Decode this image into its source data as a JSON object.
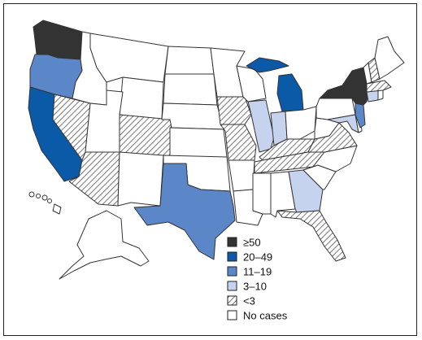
{
  "colors": {
    "ge50": "#333333",
    "c20_49": "#0a5aa8",
    "c11_19": "#5b87c9",
    "c3_10": "#c6d3ee",
    "lt3": "hatch",
    "none": "#ffffff",
    "border": "#333333"
  },
  "legend": {
    "items": [
      {
        "key": "ge50",
        "label": "≥50"
      },
      {
        "key": "c20_49",
        "label": "20–49"
      },
      {
        "key": "c11_19",
        "label": "11–19"
      },
      {
        "key": "c3_10",
        "label": "3–10"
      },
      {
        "key": "lt3",
        "label": "<3"
      },
      {
        "key": "none",
        "label": "No cases"
      }
    ]
  },
  "map_data": {
    "states": [
      {
        "name": "Washington",
        "category": "ge50"
      },
      {
        "name": "Oregon",
        "category": "c11_19"
      },
      {
        "name": "California",
        "category": "c20_49"
      },
      {
        "name": "Nevada",
        "category": "lt3"
      },
      {
        "name": "Idaho",
        "category": "none"
      },
      {
        "name": "Montana",
        "category": "none"
      },
      {
        "name": "Wyoming",
        "category": "none"
      },
      {
        "name": "Utah",
        "category": "none"
      },
      {
        "name": "Arizona",
        "category": "lt3"
      },
      {
        "name": "Colorado",
        "category": "lt3"
      },
      {
        "name": "New Mexico",
        "category": "none"
      },
      {
        "name": "North Dakota",
        "category": "none"
      },
      {
        "name": "South Dakota",
        "category": "none"
      },
      {
        "name": "Nebraska",
        "category": "none"
      },
      {
        "name": "Kansas",
        "category": "none"
      },
      {
        "name": "Oklahoma",
        "category": "none"
      },
      {
        "name": "Texas",
        "category": "c11_19"
      },
      {
        "name": "Minnesota",
        "category": "none"
      },
      {
        "name": "Iowa",
        "category": "lt3"
      },
      {
        "name": "Missouri",
        "category": "lt3"
      },
      {
        "name": "Arkansas",
        "category": "none"
      },
      {
        "name": "Louisiana",
        "category": "none"
      },
      {
        "name": "Wisconsin",
        "category": "none"
      },
      {
        "name": "Illinois",
        "category": "c3_10"
      },
      {
        "name": "Michigan",
        "category": "c20_49"
      },
      {
        "name": "Indiana",
        "category": "c3_10"
      },
      {
        "name": "Ohio",
        "category": "none"
      },
      {
        "name": "Kentucky",
        "category": "lt3"
      },
      {
        "name": "Tennessee",
        "category": "lt3"
      },
      {
        "name": "Mississippi",
        "category": "none"
      },
      {
        "name": "Alabama",
        "category": "none"
      },
      {
        "name": "Georgia",
        "category": "c3_10"
      },
      {
        "name": "Florida",
        "category": "lt3"
      },
      {
        "name": "South Carolina",
        "category": "none"
      },
      {
        "name": "North Carolina",
        "category": "none"
      },
      {
        "name": "Virginia",
        "category": "lt3"
      },
      {
        "name": "West Virginia",
        "category": "none"
      },
      {
        "name": "Maryland",
        "category": "c3_10"
      },
      {
        "name": "Delaware",
        "category": "none"
      },
      {
        "name": "Pennsylvania",
        "category": "none"
      },
      {
        "name": "New Jersey",
        "category": "c11_19"
      },
      {
        "name": "New York",
        "category": "ge50"
      },
      {
        "name": "Connecticut",
        "category": "c3_10"
      },
      {
        "name": "Rhode Island",
        "category": "none"
      },
      {
        "name": "Massachusetts",
        "category": "lt3"
      },
      {
        "name": "Vermont",
        "category": "none"
      },
      {
        "name": "New Hampshire",
        "category": "lt3"
      },
      {
        "name": "Maine",
        "category": "none"
      },
      {
        "name": "Alaska",
        "category": "none"
      },
      {
        "name": "Hawaii",
        "category": "none"
      }
    ]
  }
}
